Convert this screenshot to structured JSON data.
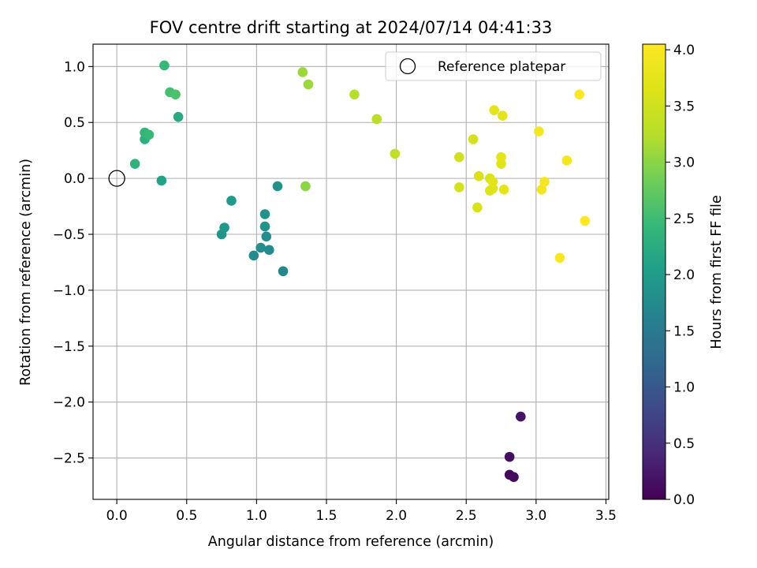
{
  "chart_data": {
    "type": "scatter",
    "title": "FOV centre drift starting at 2024/07/14 04:41:33",
    "xlabel": "Angular distance from reference (arcmin)",
    "ylabel": "Rotation from reference (arcmin)",
    "xlim": [
      -0.17,
      3.52
    ],
    "ylim": [
      -2.87,
      1.2
    ],
    "xticks": [
      "0.0",
      "0.5",
      "1.0",
      "1.5",
      "2.0",
      "2.5",
      "3.0",
      "3.5"
    ],
    "xtick_values": [
      0,
      0.5,
      1,
      1.5,
      2,
      2.5,
      3,
      3.5
    ],
    "yticks": [
      "1.0",
      "0.5",
      "0.0",
      "−0.5",
      "−1.0",
      "−1.5",
      "−2.0",
      "−2.5"
    ],
    "ytick_values": [
      1.0,
      0.5,
      0.0,
      -0.5,
      -1.0,
      -1.5,
      -2.0,
      -2.5
    ],
    "grid": true,
    "legend": {
      "placement": "top-right",
      "entries": [
        "Reference platepar"
      ]
    },
    "reference_point": {
      "x": 0.0,
      "y": 0.0
    },
    "colorbar": {
      "label": "Hours from first FF file",
      "range": [
        0.0,
        4.05
      ],
      "ticks": [
        "0.0",
        "0.5",
        "1.0",
        "1.5",
        "2.0",
        "2.5",
        "3.0",
        "3.5",
        "4.0"
      ],
      "tick_values": [
        0,
        0.5,
        1,
        1.5,
        2,
        2.5,
        3,
        3.5,
        4
      ],
      "colormap": "viridis"
    },
    "points": [
      {
        "x": 2.81,
        "y": -2.65,
        "t": 0.05
      },
      {
        "x": 2.84,
        "y": -2.67,
        "t": 0.1
      },
      {
        "x": 2.81,
        "y": -2.49,
        "t": 0.15
      },
      {
        "x": 2.89,
        "y": -2.13,
        "t": 0.2
      },
      {
        "x": 1.19,
        "y": -0.83,
        "t": 1.7
      },
      {
        "x": 0.98,
        "y": -0.69,
        "t": 1.75
      },
      {
        "x": 1.03,
        "y": -0.62,
        "t": 1.8
      },
      {
        "x": 1.09,
        "y": -0.64,
        "t": 1.75
      },
      {
        "x": 1.07,
        "y": -0.52,
        "t": 1.8
      },
      {
        "x": 1.06,
        "y": -0.43,
        "t": 1.85
      },
      {
        "x": 1.06,
        "y": -0.32,
        "t": 1.85
      },
      {
        "x": 1.15,
        "y": -0.07,
        "t": 1.85
      },
      {
        "x": 0.75,
        "y": -0.5,
        "t": 1.9
      },
      {
        "x": 0.77,
        "y": -0.44,
        "t": 1.95
      },
      {
        "x": 0.82,
        "y": -0.2,
        "t": 1.95
      },
      {
        "x": 0.32,
        "y": -0.02,
        "t": 2.1
      },
      {
        "x": 0.44,
        "y": 0.55,
        "t": 2.2
      },
      {
        "x": 0.13,
        "y": 0.13,
        "t": 2.35
      },
      {
        "x": 0.2,
        "y": 0.35,
        "t": 2.3
      },
      {
        "x": 0.2,
        "y": 0.41,
        "t": 2.4
      },
      {
        "x": 0.23,
        "y": 0.39,
        "t": 2.45
      },
      {
        "x": 0.34,
        "y": 1.01,
        "t": 2.45
      },
      {
        "x": 0.38,
        "y": 0.77,
        "t": 2.55
      },
      {
        "x": 0.42,
        "y": 0.75,
        "t": 2.6
      },
      {
        "x": 1.35,
        "y": -0.07,
        "t": 3.0
      },
      {
        "x": 1.33,
        "y": 0.95,
        "t": 3.1
      },
      {
        "x": 1.37,
        "y": 0.84,
        "t": 3.1
      },
      {
        "x": 1.7,
        "y": 0.75,
        "t": 3.25
      },
      {
        "x": 1.86,
        "y": 0.53,
        "t": 3.3
      },
      {
        "x": 1.99,
        "y": 0.22,
        "t": 3.35
      },
      {
        "x": 2.45,
        "y": 0.19,
        "t": 3.5
      },
      {
        "x": 2.45,
        "y": -0.08,
        "t": 3.55
      },
      {
        "x": 2.55,
        "y": 0.35,
        "t": 3.55
      },
      {
        "x": 2.58,
        "y": -0.26,
        "t": 3.6
      },
      {
        "x": 2.59,
        "y": 0.02,
        "t": 3.6
      },
      {
        "x": 2.67,
        "y": 0.0,
        "t": 3.6
      },
      {
        "x": 2.67,
        "y": -0.11,
        "t": 3.65
      },
      {
        "x": 2.69,
        "y": -0.09,
        "t": 3.65
      },
      {
        "x": 2.69,
        "y": -0.03,
        "t": 3.7
      },
      {
        "x": 2.7,
        "y": 0.61,
        "t": 3.75
      },
      {
        "x": 2.75,
        "y": 0.13,
        "t": 3.7
      },
      {
        "x": 2.75,
        "y": 0.19,
        "t": 3.75
      },
      {
        "x": 2.76,
        "y": 0.56,
        "t": 3.75
      },
      {
        "x": 2.77,
        "y": -0.1,
        "t": 3.75
      },
      {
        "x": 3.02,
        "y": 0.42,
        "t": 3.95
      },
      {
        "x": 3.04,
        "y": -0.1,
        "t": 3.9
      },
      {
        "x": 3.06,
        "y": -0.03,
        "t": 3.95
      },
      {
        "x": 3.17,
        "y": -0.71,
        "t": 4.0
      },
      {
        "x": 3.22,
        "y": 0.16,
        "t": 3.95
      },
      {
        "x": 3.31,
        "y": 0.75,
        "t": 4.05
      },
      {
        "x": 3.35,
        "y": -0.38,
        "t": 4.05
      }
    ]
  }
}
